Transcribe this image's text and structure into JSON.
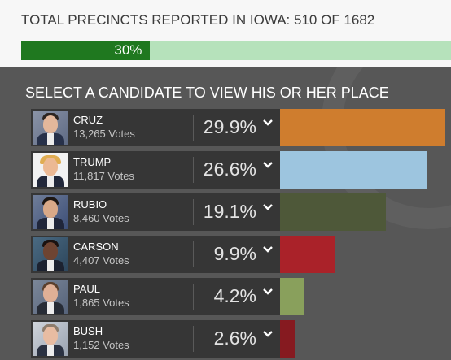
{
  "header": {
    "title": "TOTAL PRECINCTS REPORTED IN IOWA: 510 OF 1682",
    "progress_label": "30%",
    "progress_fraction": 0.3
  },
  "prompt": "SELECT A CANDIDATE TO VIEW HIS OR HER PLACE",
  "colors": {
    "progress_fill": "#1f781f",
    "progress_track": "#b6e2bb"
  },
  "candidates": [
    {
      "name": "CRUZ",
      "votes": "13,265 Votes",
      "pct": "29.9%",
      "pct_value": 29.9,
      "color": "#cf7d2e"
    },
    {
      "name": "TRUMP",
      "votes": "11,817 Votes",
      "pct": "26.6%",
      "pct_value": 26.6,
      "color": "#9dc5df"
    },
    {
      "name": "RUBIO",
      "votes": "8,460 Votes",
      "pct": "19.1%",
      "pct_value": 19.1,
      "color": "#4e5839"
    },
    {
      "name": "CARSON",
      "votes": "4,407 Votes",
      "pct": "9.9%",
      "pct_value": 9.9,
      "color": "#aa2229"
    },
    {
      "name": "PAUL",
      "votes": "1,865 Votes",
      "pct": "4.2%",
      "pct_value": 4.2,
      "color": "#89a05c"
    },
    {
      "name": "BUSH",
      "votes": "1,152 Votes",
      "pct": "2.6%",
      "pct_value": 2.6,
      "color": "#861a20"
    }
  ]
}
